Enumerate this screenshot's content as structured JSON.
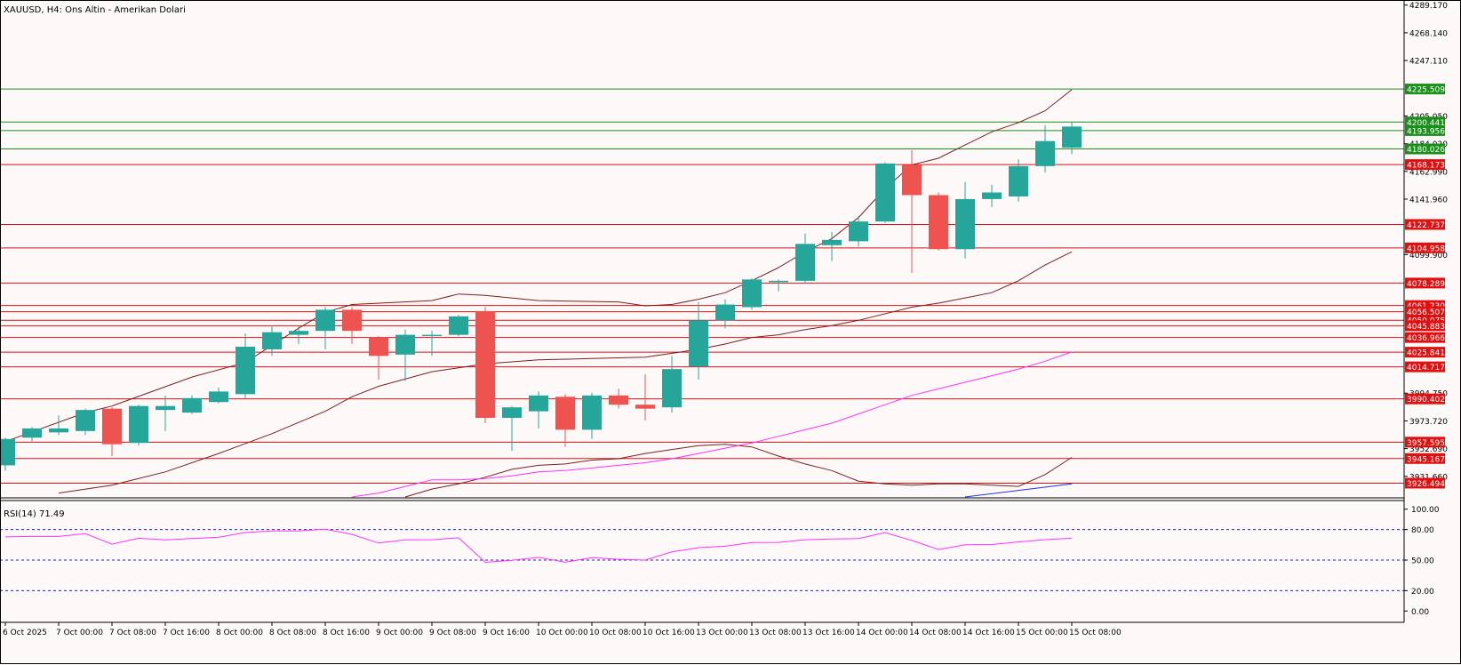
{
  "header": {
    "title": "XAUUSD, H4:  Ons Altin - Amerikan Dolari"
  },
  "colors": {
    "background": "#fdf9f9",
    "axis": "#000000",
    "bull": "#26a69a",
    "bear": "#ef5350",
    "resistance_line": "#1a8f1a",
    "support_line": "#e01010",
    "bollinger": "#7a1f1f",
    "ma_magenta": "#ff33ff",
    "ma_blue": "#2233dd",
    "rsi_line": "#ff33ff",
    "rsi_levels": "#2222cc"
  },
  "chart_data": {
    "type": "candlestick",
    "symbol": "XAUUSD",
    "timeframe": "H4",
    "ylim": [
      3916.0,
      4291.0
    ],
    "price_ticks": [
      "4289.170",
      "4268.140",
      "4247.110",
      "4205.050",
      "4184.020",
      "4162.990",
      "4141.960",
      "4099.900",
      "3994.750",
      "3973.720",
      "3952.690",
      "3931.660"
    ],
    "x_tick_labels": [
      {
        "label": "6 Oct 2025",
        "bar": 0
      },
      {
        "label": "7 Oct 00:00",
        "bar": 2
      },
      {
        "label": "7 Oct 08:00",
        "bar": 4
      },
      {
        "label": "7 Oct 16:00",
        "bar": 6
      },
      {
        "label": "8 Oct 00:00",
        "bar": 8
      },
      {
        "label": "8 Oct 08:00",
        "bar": 10
      },
      {
        "label": "8 Oct 16:00",
        "bar": 12
      },
      {
        "label": "9 Oct 00:00",
        "bar": 14
      },
      {
        "label": "9 Oct 08:00",
        "bar": 16
      },
      {
        "label": "9 Oct 16:00",
        "bar": 18
      },
      {
        "label": "10 Oct 00:00",
        "bar": 20
      },
      {
        "label": "10 Oct 08:00",
        "bar": 22
      },
      {
        "label": "10 Oct 16:00",
        "bar": 24
      },
      {
        "label": "13 Oct 00:00",
        "bar": 26
      },
      {
        "label": "13 Oct 08:00",
        "bar": 28
      },
      {
        "label": "13 Oct 16:00",
        "bar": 30
      },
      {
        "label": "14 Oct 00:00",
        "bar": 32
      },
      {
        "label": "14 Oct 08:00",
        "bar": 34
      },
      {
        "label": "14 Oct 16:00",
        "bar": 36
      },
      {
        "label": "15 Oct 00:00",
        "bar": 38
      },
      {
        "label": "15 Oct 08:00",
        "bar": 40
      }
    ],
    "candles": [
      {
        "o": 3940,
        "h": 3961,
        "l": 3936,
        "c": 3960
      },
      {
        "o": 3961,
        "h": 3969,
        "l": 3958,
        "c": 3968
      },
      {
        "o": 3965,
        "h": 3978,
        "l": 3963,
        "c": 3968
      },
      {
        "o": 3966,
        "h": 3983,
        "l": 3963,
        "c": 3982
      },
      {
        "o": 3983,
        "h": 3984,
        "l": 3947,
        "c": 3956
      },
      {
        "o": 3957,
        "h": 3986,
        "l": 3955,
        "c": 3985
      },
      {
        "o": 3982,
        "h": 3993,
        "l": 3966,
        "c": 3985
      },
      {
        "o": 3980,
        "h": 3993,
        "l": 3979,
        "c": 3991
      },
      {
        "o": 3988,
        "h": 3999,
        "l": 3987,
        "c": 3996
      },
      {
        "o": 3994,
        "h": 4040,
        "l": 3991,
        "c": 4030
      },
      {
        "o": 4028,
        "h": 4046,
        "l": 4023,
        "c": 4041
      },
      {
        "o": 4039,
        "h": 4046,
        "l": 4032,
        "c": 4042
      },
      {
        "o": 4042,
        "h": 4060,
        "l": 4028,
        "c": 4058
      },
      {
        "o": 4058,
        "h": 4060,
        "l": 4032,
        "c": 4042
      },
      {
        "o": 4037,
        "h": 4038,
        "l": 4005,
        "c": 4023
      },
      {
        "o": 4024,
        "h": 4043,
        "l": 4004,
        "c": 4039
      },
      {
        "o": 4039,
        "h": 4042,
        "l": 4023,
        "c": 4039
      },
      {
        "o": 4039,
        "h": 4054,
        "l": 4038,
        "c": 4053
      },
      {
        "o": 4057,
        "h": 4060,
        "l": 3972,
        "c": 3976
      },
      {
        "o": 3976,
        "h": 3985,
        "l": 3951,
        "c": 3984
      },
      {
        "o": 3981,
        "h": 3996,
        "l": 3968,
        "c": 3993
      },
      {
        "o": 3992,
        "h": 3994,
        "l": 3954,
        "c": 3967
      },
      {
        "o": 3967,
        "h": 3995,
        "l": 3960,
        "c": 3993
      },
      {
        "o": 3993,
        "h": 3998,
        "l": 3983,
        "c": 3986
      },
      {
        "o": 3986,
        "h": 4009,
        "l": 3974,
        "c": 3983
      },
      {
        "o": 3984,
        "h": 4023,
        "l": 3980,
        "c": 4013
      },
      {
        "o": 4015,
        "h": 4064,
        "l": 4005,
        "c": 4050
      },
      {
        "o": 4050,
        "h": 4066,
        "l": 4044,
        "c": 4062
      },
      {
        "o": 4060,
        "h": 4082,
        "l": 4058,
        "c": 4081
      },
      {
        "o": 4080,
        "h": 4081,
        "l": 4072,
        "c": 4080
      },
      {
        "o": 4080,
        "h": 4116,
        "l": 4078,
        "c": 4108
      },
      {
        "o": 4107,
        "h": 4117,
        "l": 4095,
        "c": 4111
      },
      {
        "o": 4110,
        "h": 4129,
        "l": 4106,
        "c": 4125
      },
      {
        "o": 4125,
        "h": 4170,
        "l": 4124,
        "c": 4169
      },
      {
        "o": 4168,
        "h": 4179,
        "l": 4086,
        "c": 4145
      },
      {
        "o": 4145,
        "h": 4147,
        "l": 4103,
        "c": 4104
      },
      {
        "o": 4104,
        "h": 4155,
        "l": 4097,
        "c": 4142
      },
      {
        "o": 4142,
        "h": 4153,
        "l": 4136,
        "c": 4147
      },
      {
        "o": 4144,
        "h": 4172,
        "l": 4140,
        "c": 4167
      },
      {
        "o": 4167,
        "h": 4198,
        "l": 4162,
        "c": 4186
      },
      {
        "o": 4181,
        "h": 4200,
        "l": 4176,
        "c": 4197
      }
    ],
    "horizontal_levels": [
      {
        "price": 4225.509,
        "label": "4225.509",
        "kind": "resistance"
      },
      {
        "price": 4200.441,
        "label": "4200.441",
        "kind": "resistance"
      },
      {
        "price": 4193.956,
        "label": "4193.956",
        "kind": "resistance"
      },
      {
        "price": 4180.026,
        "label": "4180.026",
        "kind": "resistance"
      },
      {
        "price": 4168.173,
        "label": "4168.173",
        "kind": "support"
      },
      {
        "price": 4122.737,
        "label": "4122.737",
        "kind": "support"
      },
      {
        "price": 4104.958,
        "label": "4104.958",
        "kind": "support"
      },
      {
        "price": 4078.289,
        "label": "4078.289",
        "kind": "support"
      },
      {
        "price": 4061.23,
        "label": "4061.230",
        "kind": "support"
      },
      {
        "price": 4056.507,
        "label": "4056.507",
        "kind": "support"
      },
      {
        "price": 4050.075,
        "label": "4050.075",
        "kind": "support"
      },
      {
        "price": 4045.883,
        "label": "4045.883",
        "kind": "support"
      },
      {
        "price": 4036.966,
        "label": "4036.966",
        "kind": "support"
      },
      {
        "price": 4025.841,
        "label": "4025.841",
        "kind": "support"
      },
      {
        "price": 4014.717,
        "label": "4014.717",
        "kind": "support"
      },
      {
        "price": 3990.402,
        "label": "3990.402",
        "kind": "support"
      },
      {
        "price": 3957.595,
        "label": "3957.595",
        "kind": "support"
      },
      {
        "price": 3945.167,
        "label": "3945.167",
        "kind": "support"
      },
      {
        "price": 3926.494,
        "label": "3926.494",
        "kind": "support"
      }
    ],
    "bollinger_upper": [
      {
        "bar": 0,
        "v": 3958
      },
      {
        "bar": 3,
        "v": 3980
      },
      {
        "bar": 4,
        "v": 3985
      },
      {
        "bar": 7,
        "v": 4007
      },
      {
        "bar": 9,
        "v": 4018
      },
      {
        "bar": 11,
        "v": 4044
      },
      {
        "bar": 12,
        "v": 4056
      },
      {
        "bar": 13,
        "v": 4062
      },
      {
        "bar": 16,
        "v": 4065
      },
      {
        "bar": 17,
        "v": 4070
      },
      {
        "bar": 18,
        "v": 4069
      },
      {
        "bar": 20,
        "v": 4065
      },
      {
        "bar": 23,
        "v": 4064
      },
      {
        "bar": 24,
        "v": 4061
      },
      {
        "bar": 25,
        "v": 4062
      },
      {
        "bar": 26,
        "v": 4066
      },
      {
        "bar": 27,
        "v": 4071
      },
      {
        "bar": 28,
        "v": 4080
      },
      {
        "bar": 29,
        "v": 4090
      },
      {
        "bar": 30,
        "v": 4102
      },
      {
        "bar": 31,
        "v": 4112
      },
      {
        "bar": 32,
        "v": 4128
      },
      {
        "bar": 33,
        "v": 4150
      },
      {
        "bar": 34,
        "v": 4168
      },
      {
        "bar": 35,
        "v": 4173
      },
      {
        "bar": 36,
        "v": 4183
      },
      {
        "bar": 37,
        "v": 4193
      },
      {
        "bar": 38,
        "v": 4200
      },
      {
        "bar": 39,
        "v": 4209
      },
      {
        "bar": 40,
        "v": 4225
      }
    ],
    "bollinger_middle": [
      {
        "bar": 2,
        "v": 3919
      },
      {
        "bar": 4,
        "v": 3925
      },
      {
        "bar": 6,
        "v": 3935
      },
      {
        "bar": 8,
        "v": 3949
      },
      {
        "bar": 10,
        "v": 3964
      },
      {
        "bar": 12,
        "v": 3981
      },
      {
        "bar": 13,
        "v": 3992
      },
      {
        "bar": 14,
        "v": 4000
      },
      {
        "bar": 16,
        "v": 4011
      },
      {
        "bar": 17,
        "v": 4014
      },
      {
        "bar": 18,
        "v": 4017
      },
      {
        "bar": 20,
        "v": 4020
      },
      {
        "bar": 22,
        "v": 4021
      },
      {
        "bar": 24,
        "v": 4022
      },
      {
        "bar": 25,
        "v": 4025
      },
      {
        "bar": 26,
        "v": 4028
      },
      {
        "bar": 27,
        "v": 4032
      },
      {
        "bar": 28,
        "v": 4037
      },
      {
        "bar": 29,
        "v": 4039
      },
      {
        "bar": 30,
        "v": 4043
      },
      {
        "bar": 31,
        "v": 4046
      },
      {
        "bar": 32,
        "v": 4050
      },
      {
        "bar": 34,
        "v": 4060
      },
      {
        "bar": 35,
        "v": 4063
      },
      {
        "bar": 36,
        "v": 4067
      },
      {
        "bar": 37,
        "v": 4071
      },
      {
        "bar": 38,
        "v": 4080
      },
      {
        "bar": 39,
        "v": 4092
      },
      {
        "bar": 40,
        "v": 4102
      }
    ],
    "bollinger_lower": [
      {
        "bar": 15,
        "v": 3916
      },
      {
        "bar": 16,
        "v": 3922
      },
      {
        "bar": 17,
        "v": 3926
      },
      {
        "bar": 18,
        "v": 3931
      },
      {
        "bar": 19,
        "v": 3937
      },
      {
        "bar": 20,
        "v": 3940
      },
      {
        "bar": 21,
        "v": 3941
      },
      {
        "bar": 22,
        "v": 3944
      },
      {
        "bar": 23,
        "v": 3945
      },
      {
        "bar": 24,
        "v": 3949
      },
      {
        "bar": 25,
        "v": 3952
      },
      {
        "bar": 26,
        "v": 3955
      },
      {
        "bar": 27,
        "v": 3956
      },
      {
        "bar": 28,
        "v": 3954
      },
      {
        "bar": 29,
        "v": 3947
      },
      {
        "bar": 30,
        "v": 3941
      },
      {
        "bar": 31,
        "v": 3936
      },
      {
        "bar": 32,
        "v": 3928
      },
      {
        "bar": 33,
        "v": 3926
      },
      {
        "bar": 34,
        "v": 3925
      },
      {
        "bar": 35,
        "v": 3926
      },
      {
        "bar": 36,
        "v": 3926
      },
      {
        "bar": 37,
        "v": 3925
      },
      {
        "bar": 38,
        "v": 3924
      },
      {
        "bar": 39,
        "v": 3933
      },
      {
        "bar": 40,
        "v": 3946
      }
    ],
    "ma_magenta": [
      {
        "bar": 13,
        "v": 3916
      },
      {
        "bar": 14,
        "v": 3919
      },
      {
        "bar": 15,
        "v": 3924
      },
      {
        "bar": 16,
        "v": 3929
      },
      {
        "bar": 17,
        "v": 3929
      },
      {
        "bar": 18,
        "v": 3930
      },
      {
        "bar": 19,
        "v": 3932
      },
      {
        "bar": 20,
        "v": 3935
      },
      {
        "bar": 21,
        "v": 3936
      },
      {
        "bar": 22,
        "v": 3938
      },
      {
        "bar": 23,
        "v": 3940
      },
      {
        "bar": 24,
        "v": 3942
      },
      {
        "bar": 25,
        "v": 3945
      },
      {
        "bar": 26,
        "v": 3949
      },
      {
        "bar": 27,
        "v": 3953
      },
      {
        "bar": 28,
        "v": 3957
      },
      {
        "bar": 29,
        "v": 3962
      },
      {
        "bar": 30,
        "v": 3967
      },
      {
        "bar": 31,
        "v": 3972
      },
      {
        "bar": 32,
        "v": 3979
      },
      {
        "bar": 33,
        "v": 3986
      },
      {
        "bar": 34,
        "v": 3993
      },
      {
        "bar": 35,
        "v": 3998
      },
      {
        "bar": 36,
        "v": 4003
      },
      {
        "bar": 37,
        "v": 4008
      },
      {
        "bar": 38,
        "v": 4013
      },
      {
        "bar": 39,
        "v": 4019
      },
      {
        "bar": 40,
        "v": 4026
      }
    ],
    "ma_blue": [
      {
        "bar": 36,
        "v": 3916
      },
      {
        "bar": 38,
        "v": 3921
      },
      {
        "bar": 40,
        "v": 3926
      }
    ],
    "rsi": {
      "label": "RSI(14) 71.49",
      "ylim": [
        -5,
        105
      ],
      "ticks": [
        "100.00",
        "80.00",
        "50.00",
        "20.00",
        "0.00"
      ],
      "levels": [
        80,
        50,
        20
      ],
      "values": [
        72.8,
        73.2,
        73.2,
        75.9,
        65.6,
        71.5,
        69.8,
        71.2,
        72.4,
        77.1,
        78.6,
        78.6,
        80.4,
        75.2,
        66.8,
        69.9,
        70.0,
        71.9,
        47.8,
        49.7,
        52.7,
        47.9,
        52.4,
        50.8,
        50.0,
        58.0,
        62.2,
        63.6,
        67.2,
        67.4,
        70.0,
        70.7,
        71.2,
        77.0,
        69.3,
        60.4,
        65.0,
        65.3,
        67.8,
        70.1,
        71.5
      ]
    }
  }
}
